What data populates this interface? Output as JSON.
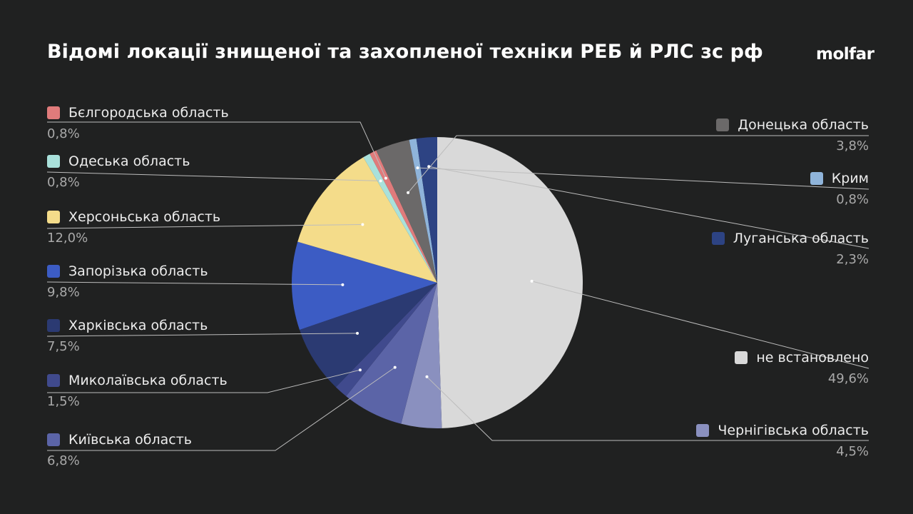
{
  "title": "Відомі локації знищеної та захопленої техніки РЕБ й РЛС зс рф",
  "brand": "molfar",
  "chart_data": {
    "type": "pie",
    "title": "Відомі локації знищеної та захопленої техніки РЕБ й РЛС зс рф",
    "start": "top",
    "direction": "clockwise",
    "slices": [
      {
        "label": "не встановлено",
        "value": 49.6,
        "display": "49,6%",
        "color": "#d9d9d9"
      },
      {
        "label": "Чернігівська область",
        "value": 4.5,
        "display": "4,5%",
        "color": "#8a90bf"
      },
      {
        "label": "Київська область",
        "value": 6.8,
        "display": "6,8%",
        "color": "#5b64a7"
      },
      {
        "label": "Миколаївська область",
        "value": 1.5,
        "display": "1,5%",
        "color": "#404a8d"
      },
      {
        "label": "Харківська область",
        "value": 7.5,
        "display": "7,5%",
        "color": "#2b3a72"
      },
      {
        "label": "Запорізька область",
        "value": 9.8,
        "display": "9,8%",
        "color": "#3c5cc4"
      },
      {
        "label": "Херсоньська область",
        "value": 12.0,
        "display": "12,0%",
        "color": "#f4dc8a"
      },
      {
        "label": "Одеська область",
        "value": 0.8,
        "display": "0,8%",
        "color": "#a9e1db"
      },
      {
        "label": "Бєлгородська область",
        "value": 0.8,
        "display": "0,8%",
        "color": "#e07b7b"
      },
      {
        "label": "Донецька область",
        "value": 3.8,
        "display": "3,8%",
        "color": "#6b6969"
      },
      {
        "label": "Крим",
        "value": 0.8,
        "display": "0,8%",
        "color": "#8fb4da"
      },
      {
        "label": "Луганська область",
        "value": 2.3,
        "display": "2,3%",
        "color": "#2d4383"
      }
    ]
  }
}
